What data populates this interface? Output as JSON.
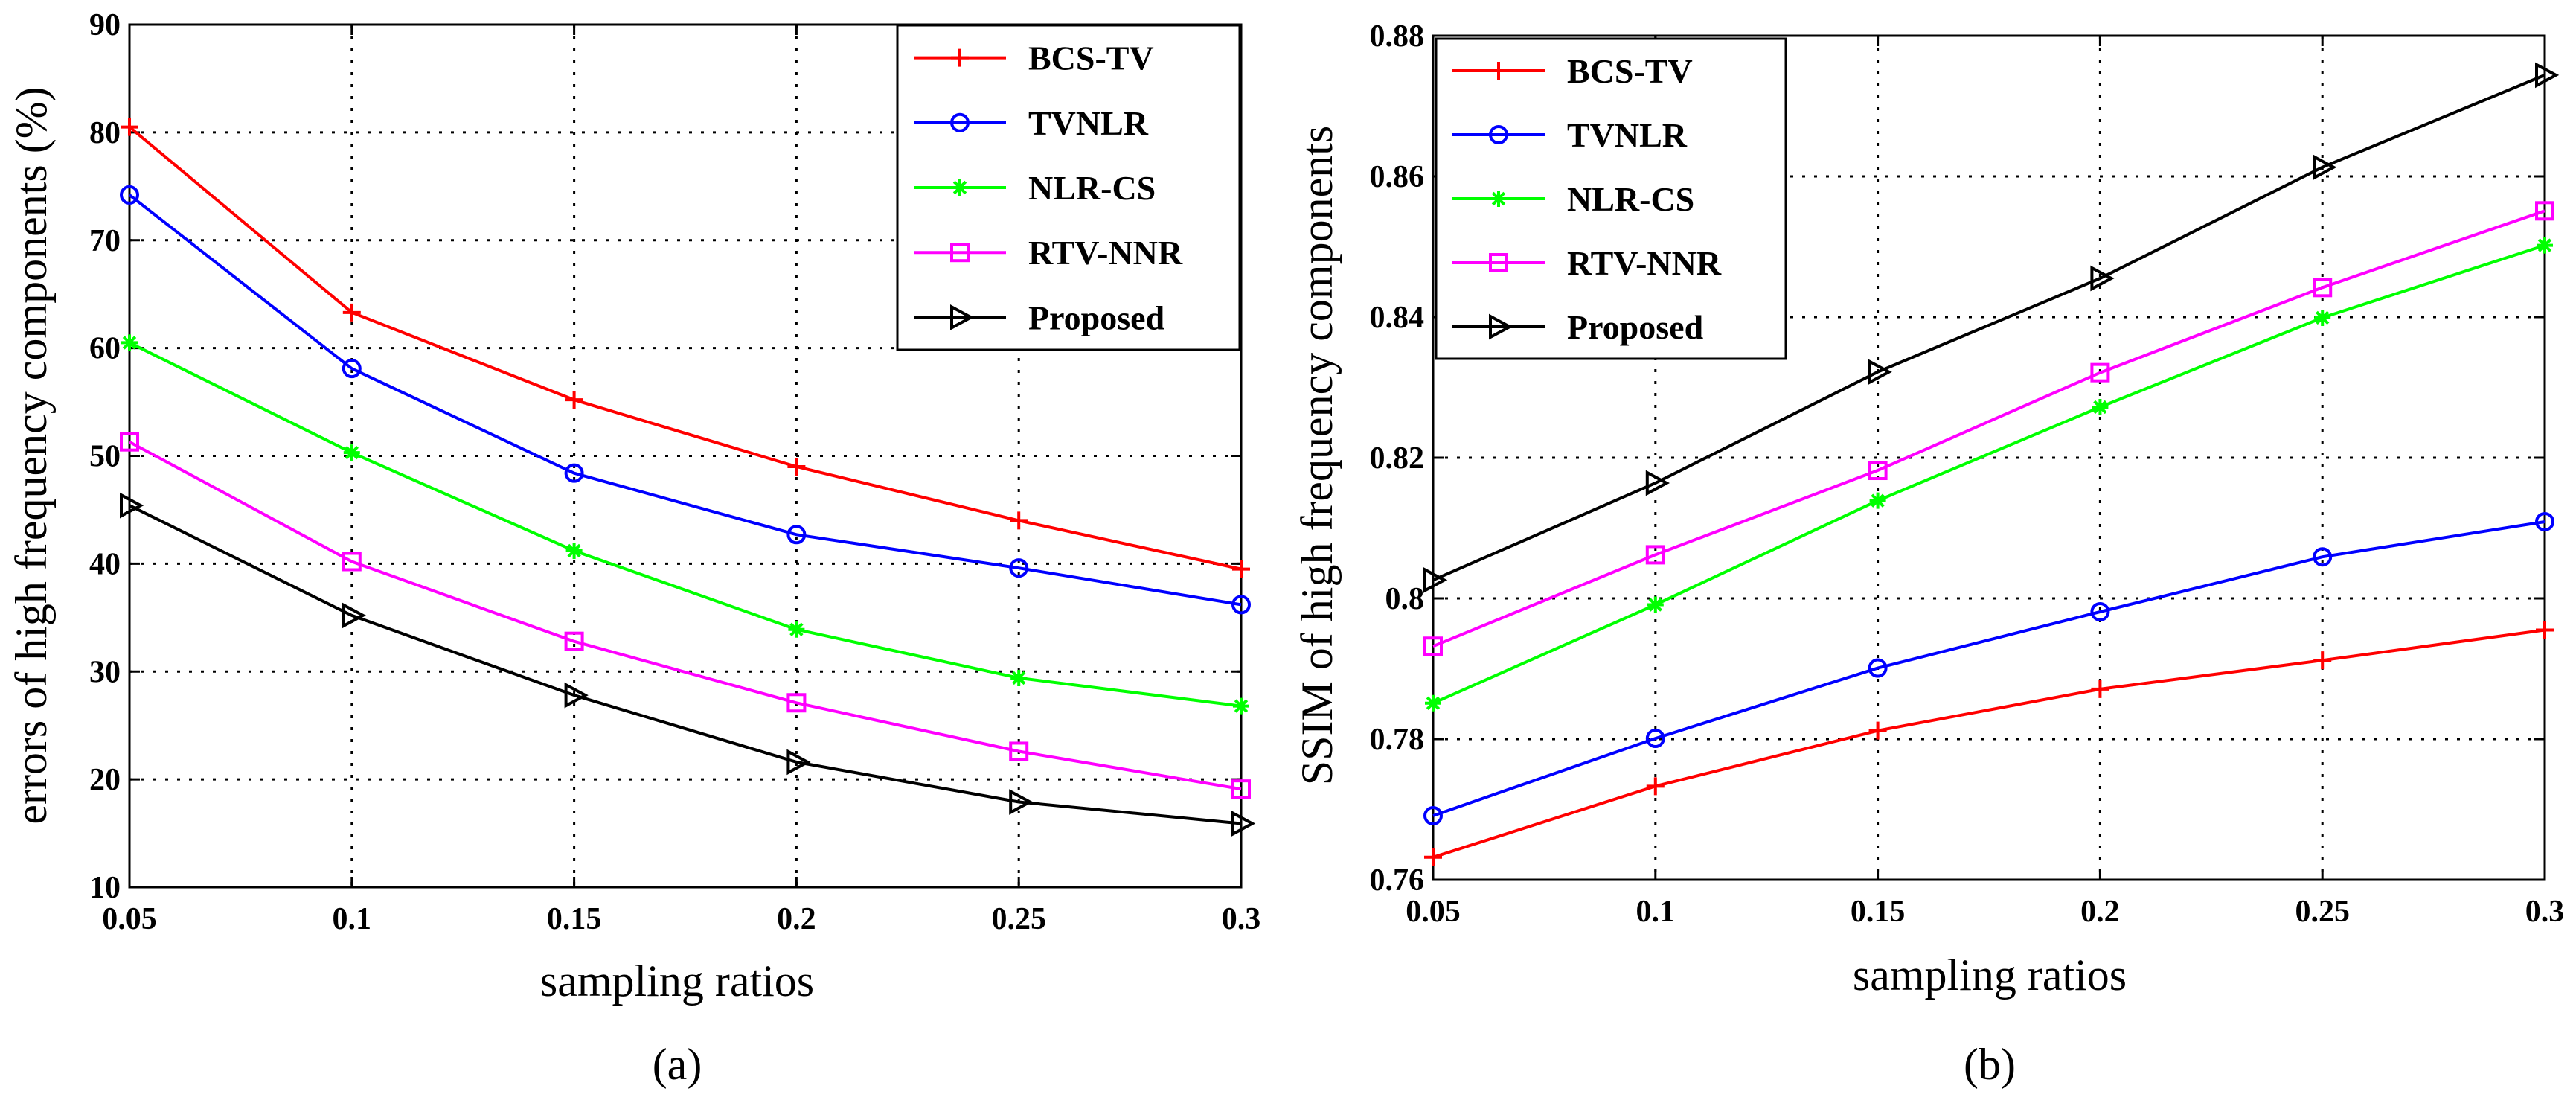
{
  "chart_data": [
    {
      "id": "a",
      "type": "line",
      "panel_label": "(a)",
      "title": "",
      "xlabel": "sampling ratios",
      "ylabel": "errors of high frequency components (%)",
      "x": [
        0.05,
        0.1,
        0.15,
        0.2,
        0.25,
        0.3
      ],
      "x_tick_labels": [
        "0.05",
        "0.1",
        "0.15",
        "0.2",
        "0.25",
        "0.3"
      ],
      "xlim": [
        0.05,
        0.3
      ],
      "ylim": [
        10,
        90
      ],
      "y_ticks": [
        10,
        20,
        30,
        40,
        50,
        60,
        70,
        80,
        90
      ],
      "y_tick_labels": [
        "10",
        "20",
        "30",
        "40",
        "50",
        "60",
        "70",
        "80",
        "90"
      ],
      "grid": true,
      "legend_position": "top-right",
      "series": [
        {
          "name": "BCS-TV",
          "color": "#ff0000",
          "marker": "plus",
          "values": [
            80.5,
            63.3,
            55.2,
            49.0,
            44.0,
            39.5
          ]
        },
        {
          "name": "TVNLR",
          "color": "#0000ff",
          "marker": "circle",
          "values": [
            74.2,
            58.1,
            48.4,
            42.7,
            39.6,
            36.2
          ]
        },
        {
          "name": "NLR-CS",
          "color": "#00ff00",
          "marker": "star",
          "values": [
            60.5,
            50.3,
            41.2,
            33.9,
            29.4,
            26.8
          ]
        },
        {
          "name": "RTV-NNR",
          "color": "#ff00ff",
          "marker": "square",
          "values": [
            51.3,
            40.2,
            32.8,
            27.1,
            22.6,
            19.1
          ]
        },
        {
          "name": "Proposed",
          "color": "#000000",
          "marker": "triangle-right",
          "values": [
            45.4,
            35.2,
            27.8,
            21.6,
            17.9,
            15.9
          ]
        }
      ]
    },
    {
      "id": "b",
      "type": "line",
      "panel_label": "(b)",
      "title": "",
      "xlabel": "sampling ratios",
      "ylabel": "SSIM of high frequency components",
      "x": [
        0.05,
        0.1,
        0.15,
        0.2,
        0.25,
        0.3
      ],
      "x_tick_labels": [
        "0.05",
        "0.1",
        "0.15",
        "0.2",
        "0.25",
        "0.3"
      ],
      "xlim": [
        0.05,
        0.3
      ],
      "ylim": [
        0.76,
        0.88
      ],
      "y_ticks": [
        0.76,
        0.78,
        0.8,
        0.82,
        0.84,
        0.86,
        0.88
      ],
      "y_tick_labels": [
        "0.76",
        "0.78",
        "0.8",
        "0.82",
        "0.84",
        "0.86",
        "0.88"
      ],
      "grid": true,
      "legend_position": "top-left",
      "series": [
        {
          "name": "BCS-TV",
          "color": "#ff0000",
          "marker": "plus",
          "values": [
            0.7632,
            0.7733,
            0.7812,
            0.7871,
            0.7912,
            0.7955
          ]
        },
        {
          "name": "TVNLR",
          "color": "#0000ff",
          "marker": "circle",
          "values": [
            0.7691,
            0.7801,
            0.7901,
            0.7981,
            0.8059,
            0.8109
          ]
        },
        {
          "name": "NLR-CS",
          "color": "#00ff00",
          "marker": "star",
          "values": [
            0.7851,
            0.7991,
            0.8139,
            0.8272,
            0.8399,
            0.8502
          ]
        },
        {
          "name": "RTV-NNR",
          "color": "#ff00ff",
          "marker": "square",
          "values": [
            0.7932,
            0.8062,
            0.8182,
            0.8321,
            0.8442,
            0.8551
          ]
        },
        {
          "name": "Proposed",
          "color": "#000000",
          "marker": "triangle-right",
          "values": [
            0.8026,
            0.8164,
            0.8322,
            0.8455,
            0.8613,
            0.8744
          ]
        }
      ]
    }
  ]
}
